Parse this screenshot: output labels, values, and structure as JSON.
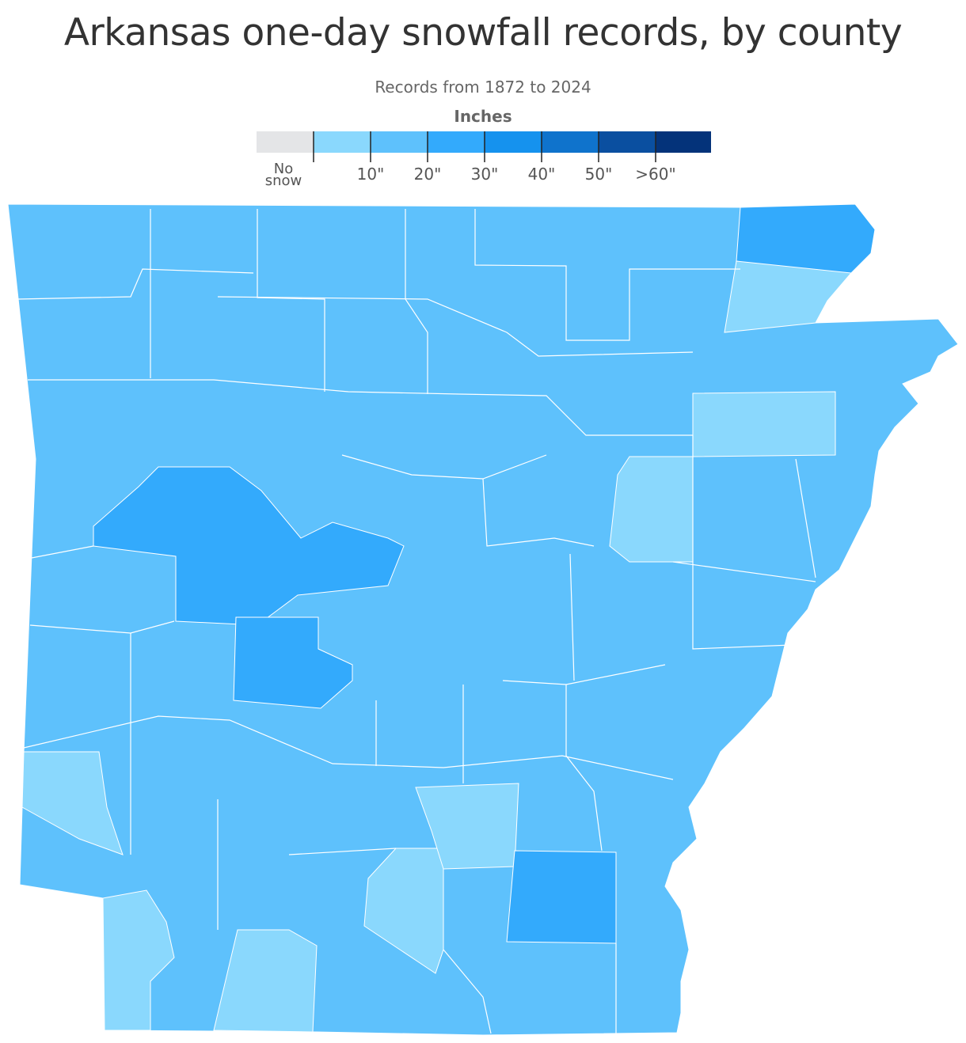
{
  "title": "Arkansas one-day snowfall records, by county",
  "subtitle": "Records from 1872 to 2024",
  "legend": {
    "title": "Inches",
    "no_data": {
      "label": "No snow",
      "color": "#e4e5e7"
    },
    "colors": [
      "#8ad8fd",
      "#5ec1fc",
      "#33aafc",
      "#1592ee",
      "#0f73cc",
      "#0a4fa0",
      "#04337a"
    ],
    "ticks": [
      "10\"",
      "20\"",
      "30\"",
      "40\"",
      "50\"",
      ">60\""
    ]
  }
}
